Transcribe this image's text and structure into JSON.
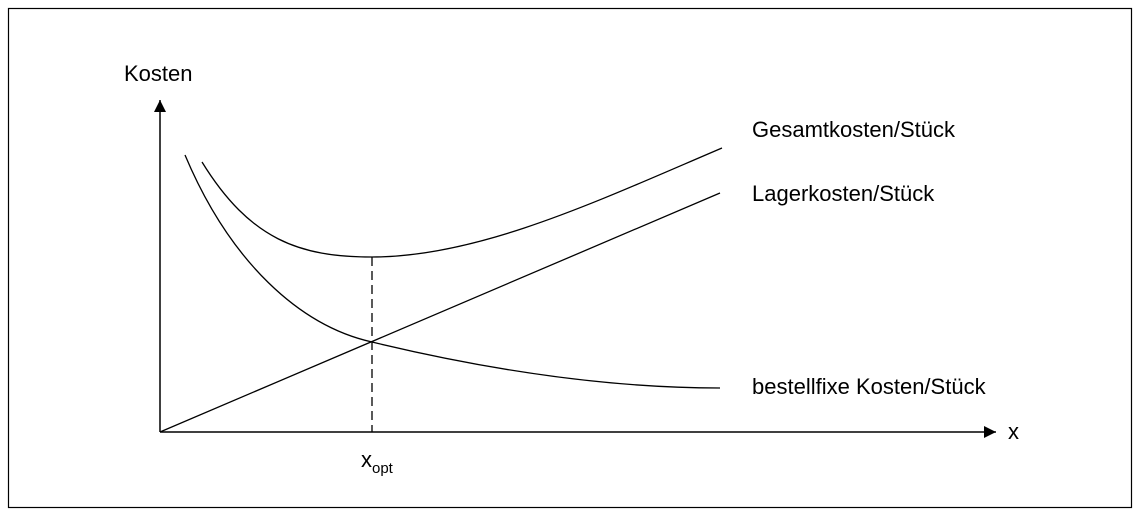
{
  "labels": {
    "y_axis": "Kosten",
    "x_axis": "x",
    "x_opt": {
      "base": "x",
      "subscript": "opt"
    }
  },
  "curves": [
    {
      "label": "Gesamtkosten/Stück"
    },
    {
      "label": "Lagerkosten/Stück"
    },
    {
      "label": "bestellfixe Kosten/Stück"
    }
  ]
}
